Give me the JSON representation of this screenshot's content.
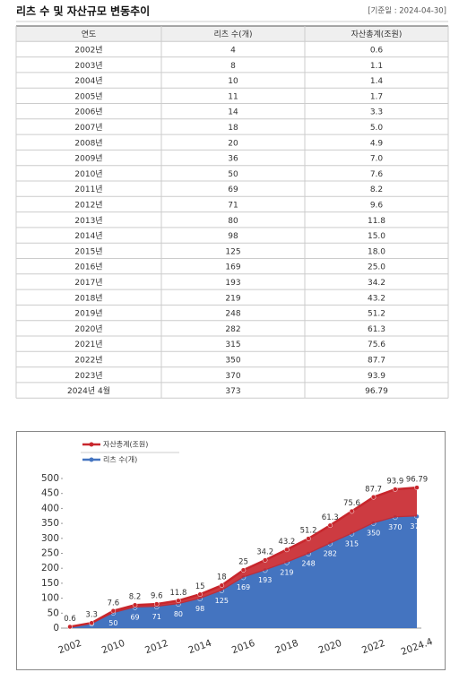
{
  "header": {
    "title": "리츠 수 및 자산규모 변동추이",
    "note": "[기준일 : 2024-04-30]"
  },
  "table": {
    "header": [
      "연도",
      "리츠 수(개)",
      "자산총계(조원)"
    ],
    "rows": [
      [
        "2002년",
        "4",
        "0.6"
      ],
      [
        "2003년",
        "8",
        "1.1"
      ],
      [
        "2004년",
        "10",
        "1.4"
      ],
      [
        "2005년",
        "11",
        "1.7"
      ],
      [
        "2006년",
        "14",
        "3.3"
      ],
      [
        "2007년",
        "18",
        "5.0"
      ],
      [
        "2008년",
        "20",
        "4.9"
      ],
      [
        "2009년",
        "36",
        "7.0"
      ],
      [
        "2010년",
        "50",
        "7.6"
      ],
      [
        "2011년",
        "69",
        "8.2"
      ],
      [
        "2012년",
        "71",
        "9.6"
      ],
      [
        "2013년",
        "80",
        "11.8"
      ],
      [
        "2014년",
        "98",
        "15.0"
      ],
      [
        "2015년",
        "125",
        "18.0"
      ],
      [
        "2016년",
        "169",
        "25.0"
      ],
      [
        "2017년",
        "193",
        "34.2"
      ],
      [
        "2018년",
        "219",
        "43.2"
      ],
      [
        "2019년",
        "248",
        "51.2"
      ],
      [
        "2020년",
        "282",
        "61.3"
      ],
      [
        "2021년",
        "315",
        "75.6"
      ],
      [
        "2022년",
        "350",
        "87.7"
      ],
      [
        "2023년",
        "370",
        "93.9"
      ],
      [
        "2024년 4월",
        "373",
        "96.79"
      ]
    ]
  },
  "chart_data": {
    "type": "stacked-area",
    "categories": [
      "2002",
      null,
      "2010",
      null,
      "2012",
      null,
      "2014",
      null,
      "2016",
      null,
      "2018",
      null,
      "2020",
      null,
      "2022",
      null,
      "2024.4"
    ],
    "series": [
      {
        "name": "리츠 수(개)",
        "color": "#4474c0",
        "values": [
          4,
          14,
          50,
          69,
          71,
          80,
          98,
          125,
          169,
          193,
          219,
          248,
          282,
          315,
          350,
          370,
          373
        ]
      },
      {
        "name": "자산총계(조원)",
        "color": "#c8262c",
        "values": [
          0.6,
          3.3,
          7.6,
          8.2,
          9.6,
          11.8,
          15,
          18,
          25,
          34.2,
          43.2,
          51.2,
          61.3,
          75.6,
          87.7,
          93.9,
          96.79
        ]
      }
    ],
    "ylim": [
      0,
      500
    ],
    "yticks": [
      0,
      50,
      100,
      150,
      200,
      250,
      300,
      350,
      400,
      450,
      500
    ],
    "grid": false
  }
}
